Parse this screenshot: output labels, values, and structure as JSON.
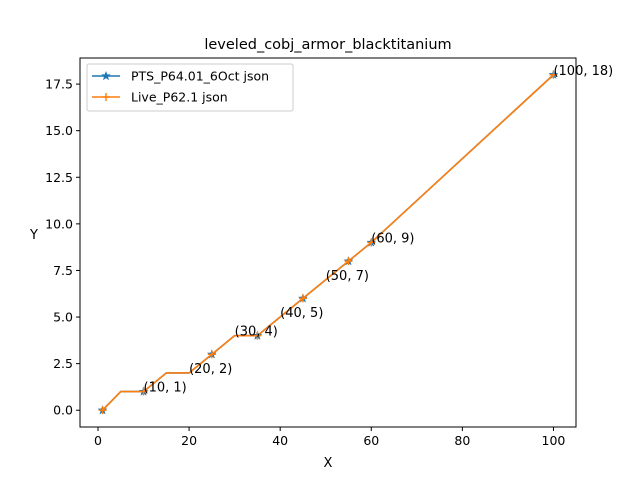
{
  "chart_data": {
    "type": "line",
    "title": "leveled_cobj_armor_blacktitanium",
    "xlabel": "X",
    "ylabel": "Y",
    "xlim": [
      -3.95,
      104.95
    ],
    "ylim": [
      -0.9,
      18.9
    ],
    "xticks": [
      0,
      20,
      40,
      60,
      80,
      100
    ],
    "yticks": [
      0.0,
      2.5,
      5.0,
      7.5,
      10.0,
      12.5,
      15.0,
      17.5
    ],
    "ytick_labels": [
      "0.0",
      "2.5",
      "5.0",
      "7.5",
      "10.0",
      "12.5",
      "15.0",
      "17.5"
    ],
    "grid": false,
    "legend_position": "upper-left",
    "series": [
      {
        "name": "PTS_P64.01_6Oct json",
        "color": "#1f77b4",
        "marker": "star",
        "x": [
          1,
          5,
          10,
          15,
          20,
          25,
          30,
          35,
          40,
          45,
          50,
          55,
          60,
          100
        ],
        "y": [
          0,
          1,
          1,
          2,
          2,
          3,
          4,
          4,
          5,
          6,
          7,
          8,
          9,
          18
        ],
        "marker_x": [
          1,
          10,
          25,
          35,
          45,
          55,
          60,
          100
        ],
        "marker_y": [
          0,
          1,
          3,
          4,
          6,
          8,
          9,
          18
        ]
      },
      {
        "name": "Live_P62.1 json",
        "color": "#ff7f0e",
        "marker": "plus",
        "x": [
          1,
          5,
          10,
          15,
          20,
          25,
          30,
          35,
          40,
          45,
          50,
          55,
          60,
          100
        ],
        "y": [
          0,
          1,
          1,
          2,
          2,
          3,
          4,
          4,
          5,
          6,
          7,
          8,
          9,
          18
        ],
        "marker_x": [
          1,
          10,
          25,
          35,
          45,
          55,
          60,
          100
        ],
        "marker_y": [
          0,
          1,
          3,
          4,
          6,
          8,
          9,
          18
        ]
      }
    ],
    "annotations": [
      {
        "text": "(10, 1)",
        "x": 10,
        "y": 1
      },
      {
        "text": "(20, 2)",
        "x": 20,
        "y": 2
      },
      {
        "text": "(30, 4)",
        "x": 30,
        "y": 4
      },
      {
        "text": "(40, 5)",
        "x": 40,
        "y": 5
      },
      {
        "text": "(50, 7)",
        "x": 50,
        "y": 7
      },
      {
        "text": "(60, 9)",
        "x": 60,
        "y": 9
      },
      {
        "text": "(100, 18)",
        "x": 100,
        "y": 18
      }
    ]
  }
}
